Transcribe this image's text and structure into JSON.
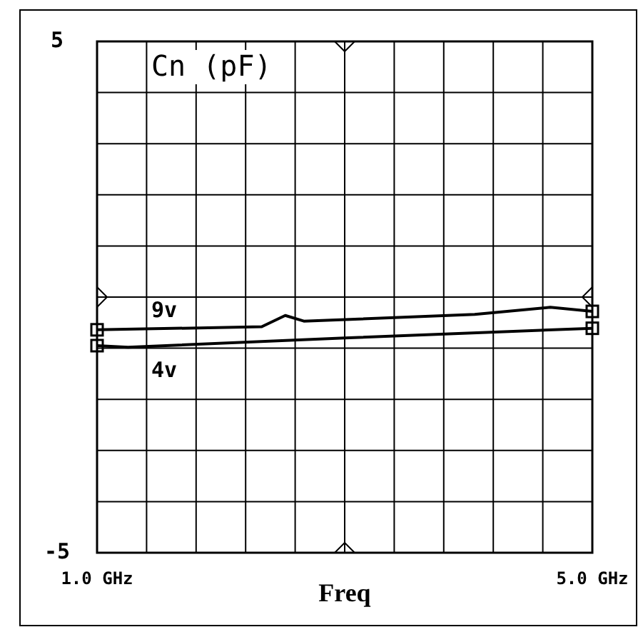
{
  "chart_data": {
    "type": "line",
    "title": "Cn (pF)",
    "xlabel": "Freq",
    "xlim": [
      1,
      5
    ],
    "xticks": [
      {
        "value": 1,
        "label": "1.0 GHz"
      },
      {
        "value": 1.4,
        "label": null
      },
      {
        "value": 1.8,
        "label": null
      },
      {
        "value": 2.2,
        "label": null
      },
      {
        "value": 2.6,
        "label": null
      },
      {
        "value": 3,
        "label": null
      },
      {
        "value": 3.4,
        "label": null
      },
      {
        "value": 3.8,
        "label": null
      },
      {
        "value": 4.2,
        "label": null
      },
      {
        "value": 4.6,
        "label": null
      },
      {
        "value": 5,
        "label": "5.0 GHz"
      }
    ],
    "ylim": [
      -5,
      5
    ],
    "yticks": [
      -5,
      {
        "value": -4,
        "label": null
      },
      {
        "value": -3,
        "label": null
      },
      {
        "value": -2,
        "label": null
      },
      {
        "value": -1,
        "label": null
      },
      {
        "value": 0,
        "label": null
      },
      {
        "value": 1,
        "label": null
      },
      {
        "value": 2,
        "label": null
      },
      {
        "value": 3,
        "label": null
      },
      {
        "value": 4,
        "label": null
      },
      5
    ],
    "grid": true,
    "line_style": "solid",
    "series": [
      {
        "name": "9v",
        "color": "#000000",
        "x": [
          1,
          2.33,
          2.52,
          2.67,
          4.05,
          4.66,
          5
        ],
        "values": [
          -0.64,
          -0.58,
          -0.36,
          -0.47,
          -0.34,
          -0.2,
          -0.28
        ]
      },
      {
        "name": "4v",
        "color": "#000000",
        "x": [
          1,
          1.25,
          3,
          5
        ],
        "values": [
          -0.95,
          -0.98,
          -0.8,
          -0.61
        ]
      }
    ]
  }
}
